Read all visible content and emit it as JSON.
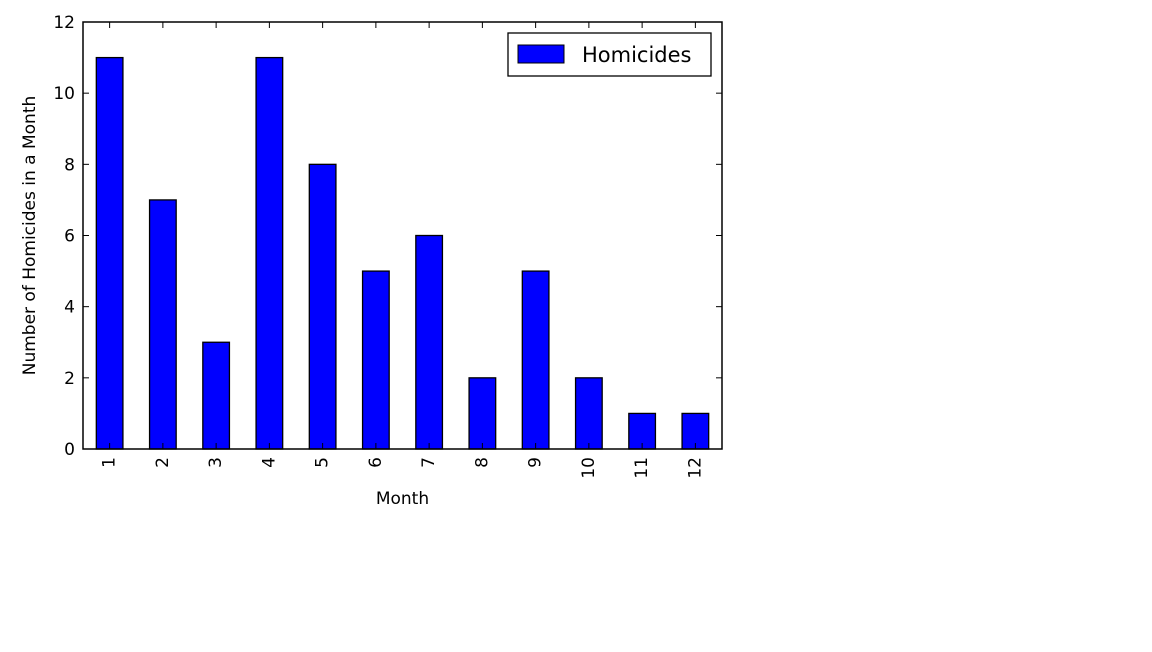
{
  "chart_data": {
    "type": "bar",
    "title": "",
    "xlabel": "Month",
    "ylabel": "Number of Homicides in a Month",
    "categories": [
      "1",
      "2",
      "3",
      "4",
      "5",
      "6",
      "7",
      "8",
      "9",
      "10",
      "11",
      "12"
    ],
    "series": [
      {
        "name": "Homicides",
        "values": [
          11,
          7,
          3,
          11,
          8,
          5,
          6,
          2,
          5,
          2,
          1,
          1
        ],
        "color": "#0000ff"
      }
    ],
    "ylim": [
      0,
      12
    ],
    "yticks": [
      0,
      2,
      4,
      6,
      8,
      10,
      12
    ],
    "xtick_rotation": "vertical",
    "grid": false,
    "legend_position": "top-right"
  }
}
